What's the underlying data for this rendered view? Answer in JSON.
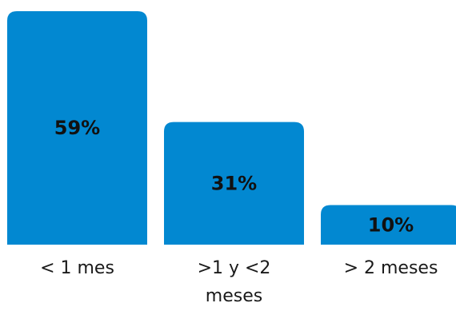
{
  "chart_data": {
    "type": "bar",
    "categories": [
      "< 1 mes",
      ">1 y <2 meses",
      "> 2 meses"
    ],
    "category_lines": [
      [
        "< 1 mes"
      ],
      [
        ">1 y <2",
        "meses"
      ],
      [
        "> 2 meses"
      ]
    ],
    "values": [
      59,
      31,
      10
    ],
    "value_labels": [
      "59%",
      "31%",
      "10%"
    ],
    "ylim": [
      0,
      59
    ],
    "grid": false,
    "legend": "none",
    "colors": {
      "bar": "#0288D1",
      "value_text": "#111111",
      "category_text": "#1a1a1a"
    }
  }
}
